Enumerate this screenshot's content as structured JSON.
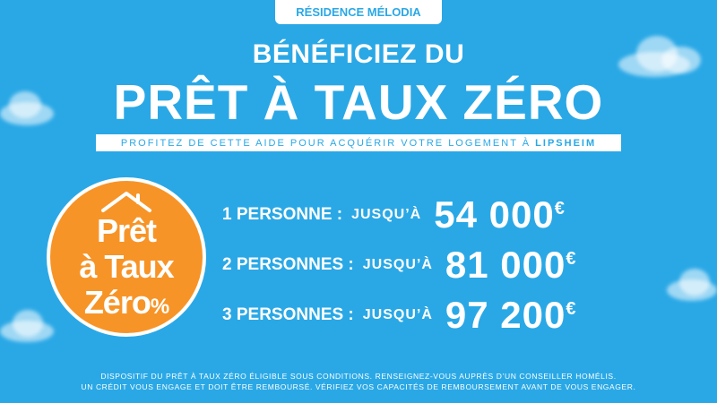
{
  "residence": "RÉSIDENCE MÉLODIA",
  "headline_line1": "BÉNÉFICIEZ DU",
  "headline_line2": "PRÊT À TAUX ZÉRO",
  "subline_text": "PROFITEZ DE CETTE AIDE POUR ACQUÉRIR VOTRE LOGEMENT À ",
  "subline_city": "LIPSHEIM",
  "badge": {
    "line1": "Prêt",
    "line2": "à Taux",
    "line3": "Zéro",
    "percent": "%"
  },
  "offers": [
    {
      "who": "1 PERSONNE :",
      "upto": "JUSQU’À",
      "amount": "54 000",
      "currency": "€"
    },
    {
      "who": "2 PERSONNES :",
      "upto": "JUSQU’À",
      "amount": "81 000",
      "currency": "€"
    },
    {
      "who": "3 PERSONNES :",
      "upto": "JUSQU’À",
      "amount": "97 200",
      "currency": "€"
    }
  ],
  "disclaimer": {
    "line1": "DISPOSITIF DU PRÊT À TAUX ZÉRO ÉLIGIBLE SOUS CONDITIONS. RENSEIGNEZ-VOUS AUPRÈS D’UN CONSEILLER HOMÉLIS.",
    "line2": "UN CRÉDIT VOUS ENGAGE ET DOIT ÊTRE REMBOURSÉ. VÉRIFIEZ VOS CAPACITÉS DE REMBOURSEMENT AVANT DE VOUS ENGAGER."
  },
  "colors": {
    "background": "#2aa8e6",
    "badge": "#f79427",
    "text": "#ffffff"
  },
  "icons": [
    "house-roof-icon",
    "cloud-decoration"
  ]
}
